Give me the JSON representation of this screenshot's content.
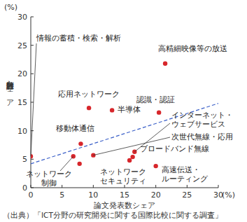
{
  "chart_data": {
    "type": "scatter",
    "y_unit": "(%)",
    "x_unit": "(%)",
    "y_label": "特許出願数シェア",
    "x_label": "論文発表数シェア",
    "source": "（出典）「ICT分野の研究開発に関する国際比較に関する調査」",
    "xlim": [
      0,
      30
    ],
    "xticks": [
      0,
      5,
      10,
      15,
      20,
      25,
      30
    ],
    "ylim": [
      0,
      30
    ],
    "yticks": [
      0,
      5,
      10,
      15,
      20,
      25,
      30
    ],
    "grid": false,
    "series": [
      {
        "type": "scatter",
        "color": "#d7262b",
        "marker": "circle",
        "x": [
          0,
          21.5,
          9.3,
          13.0,
          20.5,
          8.0,
          16.6,
          6.8,
          7.8,
          10.0,
          16.3,
          15.8,
          20.0
        ],
        "values": [
          5.5,
          21.8,
          14.0,
          13.6,
          13.2,
          7.7,
          6.3,
          5.5,
          4.2,
          5.7,
          5.4,
          4.8,
          3.8
        ],
        "labels": [
          [
            "情報の蓄積・検索・解析"
          ],
          [
            "高精細映像等の放送"
          ],
          [
            "応用ネットワーク"
          ],
          [
            "半導体"
          ],
          [
            "認識・認証"
          ],
          [
            "移動体通信"
          ],
          [
            "インターネット・",
            "ウェブサービス"
          ],
          [
            "ネットワーク",
            "制御"
          ],
          null,
          [
            "次世代無線・応用"
          ],
          [
            "ブロードバンド無線"
          ],
          [
            "ネットワーク",
            "セキュリティ"
          ],
          [
            "高速伝送・",
            "ルーティング"
          ]
        ]
      },
      {
        "type": "line",
        "color": "#3a5fc8",
        "line_style": "dashed",
        "x": [
          0,
          30
        ],
        "values": [
          4.2,
          14.8
        ]
      }
    ]
  }
}
